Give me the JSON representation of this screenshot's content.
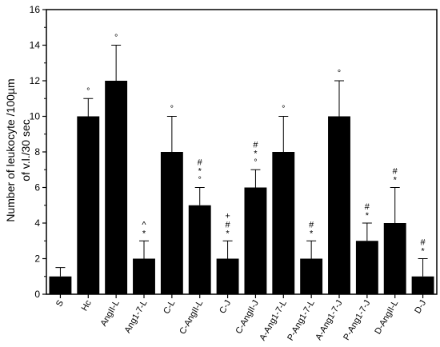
{
  "chart_data": {
    "type": "bar",
    "ylabel_line1": "Number of leukocyte /100µm",
    "ylabel_line2": "of v.l./30 sec",
    "ylim": [
      0,
      16
    ],
    "yticks": [
      0,
      2,
      4,
      6,
      8,
      10,
      12,
      14,
      16
    ],
    "grid": false,
    "bar_color": "#000000",
    "categories": [
      "S",
      "Hc",
      "AngII-L",
      "Ang1-7-L",
      "C-L",
      "C-AngII-L",
      "C-J",
      "C-AngII-J",
      "A-Ang1-7-L",
      "P-Ang1-7-L",
      "A-Ang1-7-J",
      "P-Ang1-7-J",
      "D-AngII-L",
      "D-J"
    ],
    "values": [
      1,
      10,
      12,
      2,
      8,
      5,
      2,
      6,
      8,
      2,
      10,
      3,
      4,
      1
    ],
    "errors": [
      0.5,
      1,
      2,
      1,
      2,
      1,
      1,
      1,
      2,
      1,
      2,
      1,
      2,
      1
    ],
    "annotations": [
      [],
      [
        "°"
      ],
      [
        "°"
      ],
      [
        "^",
        "*"
      ],
      [
        "°"
      ],
      [
        "#",
        "*",
        "°"
      ],
      [
        "+",
        "#",
        "*"
      ],
      [
        "#",
        "*",
        "°"
      ],
      [
        "°"
      ],
      [
        "#",
        "*"
      ],
      [
        "°"
      ],
      [
        "#",
        "*"
      ],
      [
        "#",
        "*"
      ],
      [
        "#",
        "*"
      ]
    ]
  }
}
